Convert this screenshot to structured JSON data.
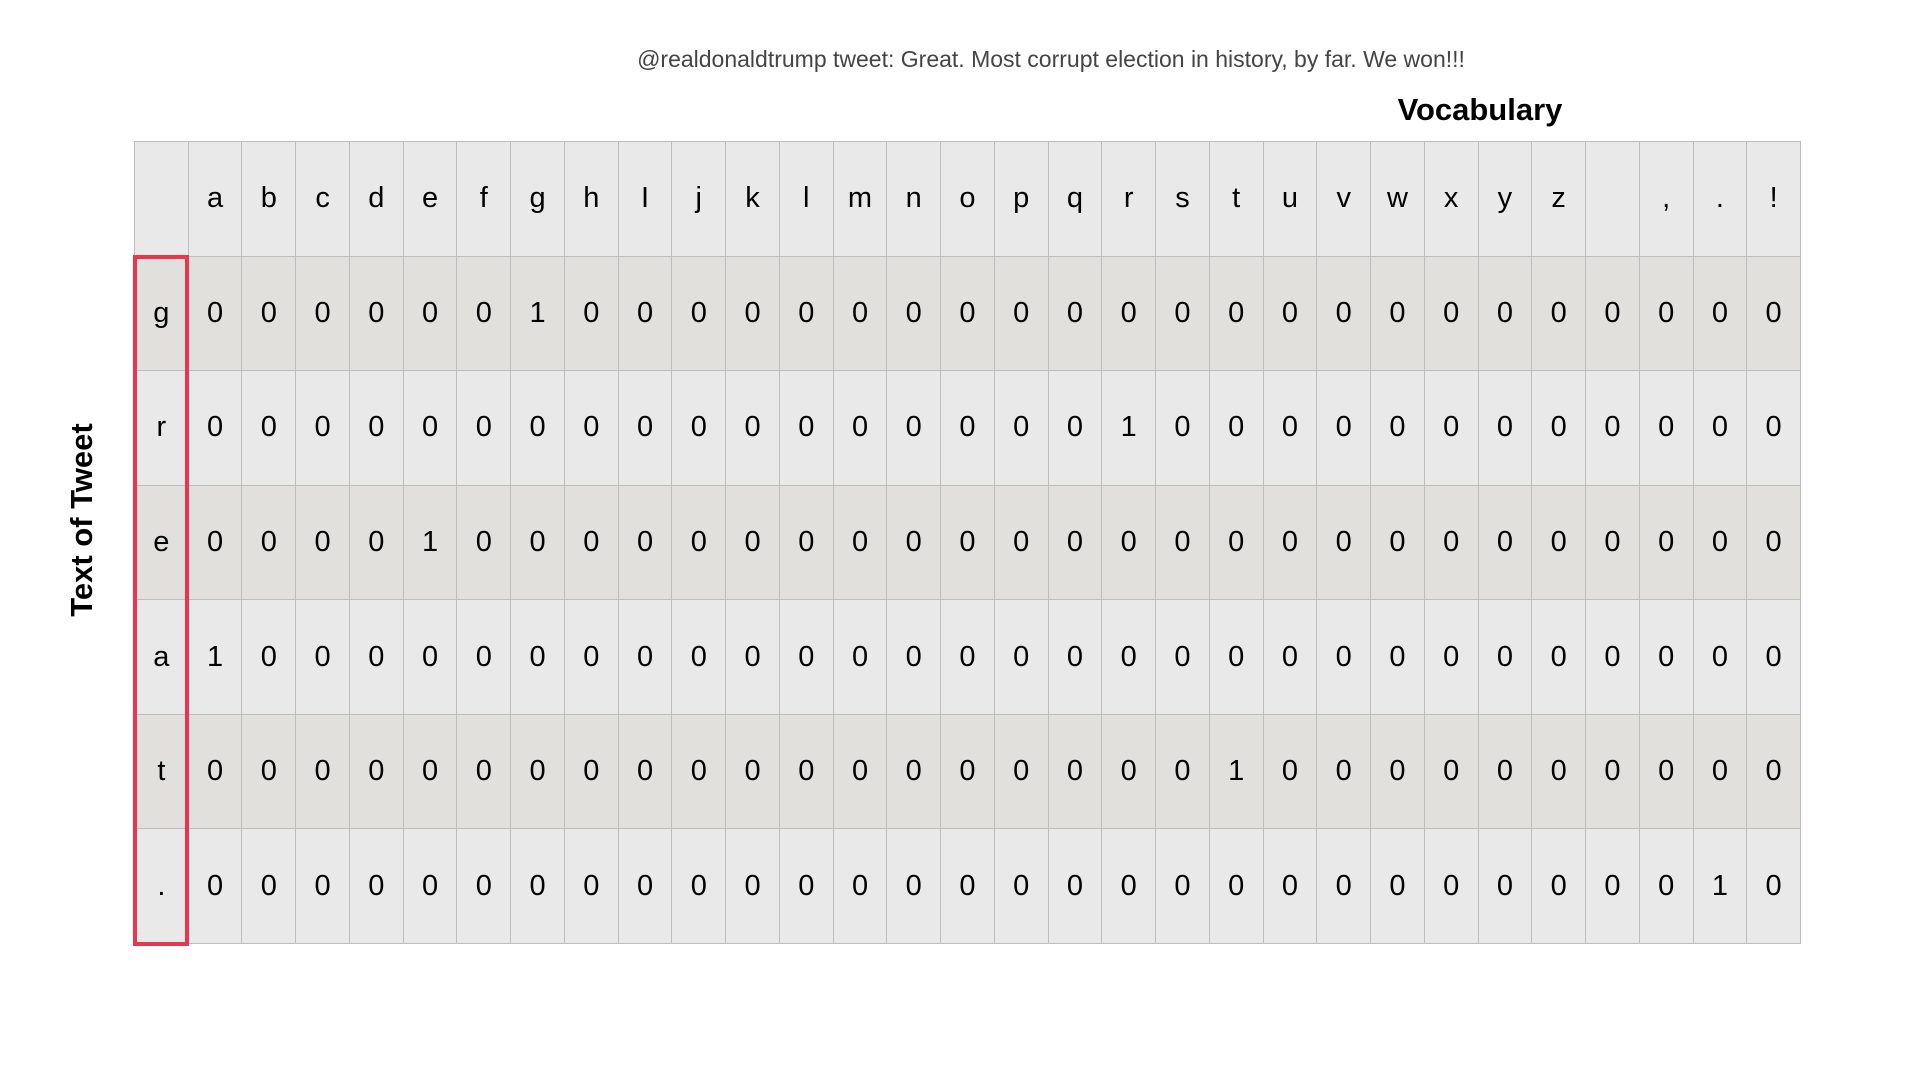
{
  "caption": "@realdonaldtrump tweet: Great. Most corrupt election in history, by far. We won!!!",
  "vocab_label": "Vocabulary",
  "row_label": "Text of Tweet",
  "highlight_color": "#ea3550",
  "vocabulary": [
    "a",
    "b",
    "c",
    "d",
    "e",
    "f",
    "g",
    "h",
    "I",
    "j",
    "k",
    "l",
    "m",
    "n",
    "o",
    "p",
    "q",
    "r",
    "s",
    "t",
    "u",
    "v",
    "w",
    "x",
    "y",
    "z",
    " ",
    ",",
    ".",
    "!"
  ],
  "rows": [
    {
      "char": "g",
      "values": [
        0,
        0,
        0,
        0,
        0,
        0,
        1,
        0,
        0,
        0,
        0,
        0,
        0,
        0,
        0,
        0,
        0,
        0,
        0,
        0,
        0,
        0,
        0,
        0,
        0,
        0,
        0,
        0,
        0,
        0
      ]
    },
    {
      "char": "r",
      "values": [
        0,
        0,
        0,
        0,
        0,
        0,
        0,
        0,
        0,
        0,
        0,
        0,
        0,
        0,
        0,
        0,
        0,
        1,
        0,
        0,
        0,
        0,
        0,
        0,
        0,
        0,
        0,
        0,
        0,
        0
      ]
    },
    {
      "char": "e",
      "values": [
        0,
        0,
        0,
        0,
        1,
        0,
        0,
        0,
        0,
        0,
        0,
        0,
        0,
        0,
        0,
        0,
        0,
        0,
        0,
        0,
        0,
        0,
        0,
        0,
        0,
        0,
        0,
        0,
        0,
        0
      ]
    },
    {
      "char": "a",
      "values": [
        1,
        0,
        0,
        0,
        0,
        0,
        0,
        0,
        0,
        0,
        0,
        0,
        0,
        0,
        0,
        0,
        0,
        0,
        0,
        0,
        0,
        0,
        0,
        0,
        0,
        0,
        0,
        0,
        0,
        0
      ]
    },
    {
      "char": "t",
      "values": [
        0,
        0,
        0,
        0,
        0,
        0,
        0,
        0,
        0,
        0,
        0,
        0,
        0,
        0,
        0,
        0,
        0,
        0,
        0,
        1,
        0,
        0,
        0,
        0,
        0,
        0,
        0,
        0,
        0,
        0
      ]
    },
    {
      "char": ".",
      "values": [
        0,
        0,
        0,
        0,
        0,
        0,
        0,
        0,
        0,
        0,
        0,
        0,
        0,
        0,
        0,
        0,
        0,
        0,
        0,
        0,
        0,
        0,
        0,
        0,
        0,
        0,
        0,
        0,
        1,
        0
      ]
    }
  ]
}
